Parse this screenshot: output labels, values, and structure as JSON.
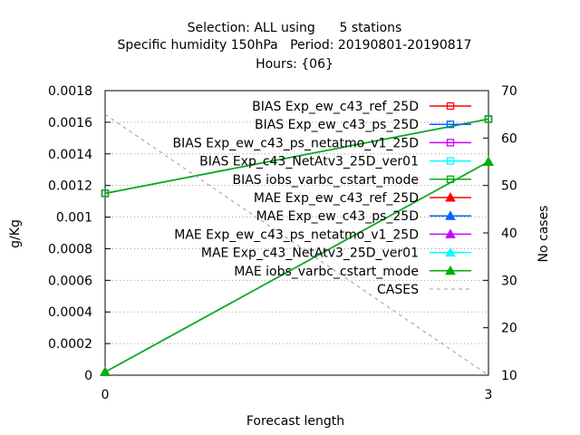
{
  "chart_data": {
    "type": "line",
    "title_lines": [
      "Selection: ALL using      5 stations",
      "Specific humidity 150hPa   Period: 20190801-20190817",
      "Hours: {06}"
    ],
    "xlabel": "Forecast length",
    "ylabel": "g/Kg",
    "y2label": "No cases",
    "x_ticks": [
      "0",
      "3"
    ],
    "xlim": [
      0,
      3
    ],
    "ylim": [
      0,
      0.0018
    ],
    "y_ticks": [
      "0",
      "0.0002",
      "0.0004",
      "0.0006",
      "0.0008",
      "0.001",
      "0.0012",
      "0.0014",
      "0.0016",
      "0.0018"
    ],
    "y2lim": [
      10,
      70
    ],
    "y2_ticks": [
      "10",
      "20",
      "30",
      "40",
      "50",
      "60",
      "70"
    ],
    "grid": "horizontal dotted",
    "legend_position": "top-right",
    "series": [
      {
        "name": "BIAS Exp_ew_c43_ref_25D",
        "color": "#ff0000",
        "marker": "square",
        "axis": "y1",
        "x": [
          0,
          3
        ],
        "y": [
          0.00115,
          0.00162
        ]
      },
      {
        "name": "BIAS Exp_ew_c43_ps_25D",
        "color": "#0066ff",
        "marker": "square",
        "axis": "y1",
        "x": [
          0,
          3
        ],
        "y": [
          0.00115,
          0.00162
        ]
      },
      {
        "name": "BIAS Exp_ew_c43_ps_netatmo_v1_25D",
        "color": "#cc00ff",
        "marker": "square",
        "axis": "y1",
        "x": [
          0,
          3
        ],
        "y": [
          0.00115,
          0.00162
        ]
      },
      {
        "name": "BIAS Exp_c43_NetAtv3_25D_ver01",
        "color": "#00ffff",
        "marker": "square",
        "axis": "y1",
        "x": [
          0,
          3
        ],
        "y": [
          0.00115,
          0.00162
        ]
      },
      {
        "name": "BIAS iobs_varbc_cstart_mode",
        "color": "#00b000",
        "marker": "square",
        "axis": "y1",
        "x": [
          0,
          3
        ],
        "y": [
          0.00115,
          0.00162
        ]
      },
      {
        "name": "MAE Exp_ew_c43_ref_25D",
        "color": "#ff0000",
        "marker": "triangle",
        "axis": "y1",
        "x": [
          0,
          3
        ],
        "y": [
          2e-05,
          0.00135
        ]
      },
      {
        "name": "MAE Exp_ew_c43_ps_25D",
        "color": "#0066ff",
        "marker": "triangle",
        "axis": "y1",
        "x": [
          0,
          3
        ],
        "y": [
          2e-05,
          0.00135
        ]
      },
      {
        "name": "MAE Exp_ew_c43_ps_netatmo_v1_25D",
        "color": "#cc00ff",
        "marker": "triangle",
        "axis": "y1",
        "x": [
          0,
          3
        ],
        "y": [
          2e-05,
          0.00135
        ]
      },
      {
        "name": "MAE Exp_c43_NetAtv3_25D_ver01",
        "color": "#00ffff",
        "marker": "triangle",
        "axis": "y1",
        "x": [
          0,
          3
        ],
        "y": [
          2e-05,
          0.00135
        ]
      },
      {
        "name": "MAE iobs_varbc_cstart_mode",
        "color": "#00b000",
        "marker": "triangle",
        "axis": "y1",
        "x": [
          0,
          3
        ],
        "y": [
          2e-05,
          0.00135
        ]
      },
      {
        "name": "CASES",
        "color": "#a0a0a0",
        "marker": "none",
        "dashed": true,
        "axis": "y2",
        "x": [
          0,
          3
        ],
        "y": [
          65,
          10
        ]
      }
    ]
  }
}
